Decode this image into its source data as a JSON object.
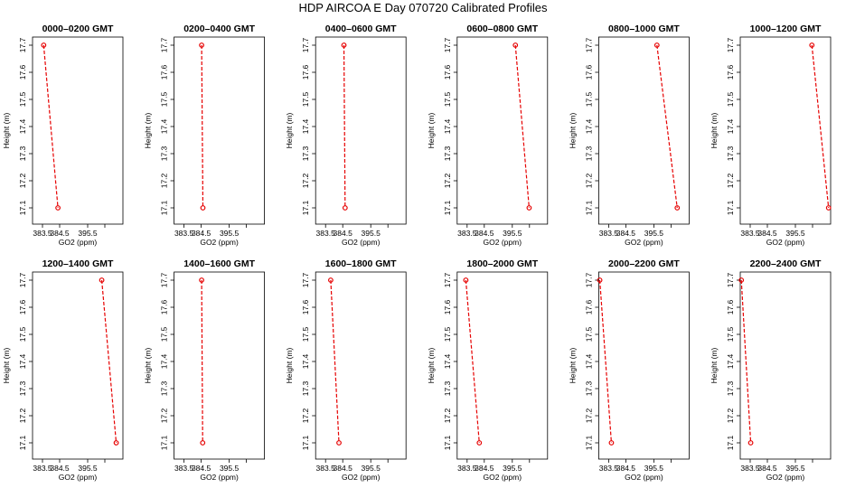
{
  "figure": {
    "title": "HDP  AIRCOA E  Day 070720  Calibrated Profiles"
  },
  "chart_data": [
    {
      "type": "line",
      "title": "0000–0200 GMT",
      "xlabel": "GO2 (ppm)",
      "ylabel": "Height (m)",
      "xlim": [
        382.95,
        396.35
      ],
      "ylim": [
        17.04,
        17.73
      ],
      "xticks": [
        "383.5",
        "384.5",
        "395.5"
      ],
      "yticks": [
        "17.1",
        "17.2",
        "17.3",
        "17.4",
        "17.5",
        "17.6",
        "17.7"
      ],
      "x": [
        383.57,
        384.4
      ],
      "y": [
        17.7,
        17.1
      ]
    },
    {
      "type": "line",
      "title": "0200–0400 GMT",
      "xlabel": "GO2 (ppm)",
      "ylabel": "Height (m)",
      "xlim": [
        382.95,
        396.35
      ],
      "ylim": [
        17.04,
        17.73
      ],
      "xticks": [
        "383.5",
        "384.5",
        "395.5"
      ],
      "yticks": [
        "17.1",
        "17.2",
        "17.3",
        "17.4",
        "17.5",
        "17.6",
        "17.7"
      ],
      "x": [
        384.67,
        385.17
      ],
      "y": [
        17.7,
        17.1
      ]
    },
    {
      "type": "line",
      "title": "0400–0600 GMT",
      "xlabel": "GO2 (ppm)",
      "ylabel": "Height (m)",
      "xlim": [
        382.95,
        396.35
      ],
      "ylim": [
        17.04,
        17.73
      ],
      "xticks": [
        "383.5",
        "384.5",
        "395.5"
      ],
      "yticks": [
        "17.1",
        "17.2",
        "17.3",
        "17.4",
        "17.5",
        "17.6",
        "17.7"
      ],
      "x": [
        384.97,
        385.43
      ],
      "y": [
        17.7,
        17.1
      ]
    },
    {
      "type": "line",
      "title": "0600–0800 GMT",
      "xlabel": "GO2 (ppm)",
      "ylabel": "Height (m)",
      "xlim": [
        382.95,
        396.35
      ],
      "ylim": [
        17.04,
        17.73
      ],
      "xticks": [
        "383.5",
        "384.5",
        "395.5"
      ],
      "yticks": [
        "17.1",
        "17.2",
        "17.3",
        "17.4",
        "17.5",
        "17.6",
        "17.7"
      ],
      "x": [
        395.59,
        395.99
      ],
      "y": [
        17.7,
        17.1
      ]
    },
    {
      "type": "line",
      "title": "0800–1000 GMT",
      "xlabel": "GO2 (ppm)",
      "ylabel": "Height (m)",
      "xlim": [
        382.95,
        396.35
      ],
      "ylim": [
        17.04,
        17.73
      ],
      "xticks": [
        "383.5",
        "384.5",
        "395.5"
      ],
      "yticks": [
        "17.1",
        "17.2",
        "17.3",
        "17.4",
        "17.5",
        "17.6",
        "17.7"
      ],
      "x": [
        395.59,
        396.12
      ],
      "y": [
        17.7,
        17.1
      ]
    },
    {
      "type": "line",
      "title": "1000–1200 GMT",
      "xlabel": "GO2 (ppm)",
      "ylabel": "Height (m)",
      "xlim": [
        382.95,
        396.35
      ],
      "ylim": [
        17.04,
        17.73
      ],
      "xticks": [
        "383.5",
        "384.5",
        "395.5"
      ],
      "yticks": [
        "17.1",
        "17.2",
        "17.3",
        "17.4",
        "17.5",
        "17.6",
        "17.7"
      ],
      "x": [
        395.98,
        396.31
      ],
      "y": [
        17.7,
        17.1
      ]
    },
    {
      "type": "line",
      "title": "1200–1400 GMT",
      "xlabel": "GO2 (ppm)",
      "ylabel": "Height (m)",
      "xlim": [
        382.95,
        396.35
      ],
      "ylim": [
        17.04,
        17.73
      ],
      "xticks": [
        "383.5",
        "384.5",
        "395.5"
      ],
      "yticks": [
        "17.1",
        "17.2",
        "17.3",
        "17.4",
        "17.5",
        "17.6",
        "17.7"
      ],
      "x": [
        395.91,
        396.22
      ],
      "y": [
        17.7,
        17.1
      ]
    },
    {
      "type": "line",
      "title": "1400–1600 GMT",
      "xlabel": "GO2 (ppm)",
      "ylabel": "Height (m)",
      "xlim": [
        382.95,
        396.35
      ],
      "ylim": [
        17.04,
        17.73
      ],
      "xticks": [
        "383.5",
        "384.5",
        "395.5"
      ],
      "yticks": [
        "17.1",
        "17.2",
        "17.3",
        "17.4",
        "17.5",
        "17.6",
        "17.7"
      ],
      "x": [
        384.67,
        385.08
      ],
      "y": [
        17.7,
        17.1
      ]
    },
    {
      "type": "line",
      "title": "1600–1800 GMT",
      "xlabel": "GO2 (ppm)",
      "ylabel": "Height (m)",
      "xlim": [
        382.95,
        396.35
      ],
      "ylim": [
        17.04,
        17.73
      ],
      "xticks": [
        "383.5",
        "384.5",
        "395.5"
      ],
      "yticks": [
        "17.1",
        "17.2",
        "17.3",
        "17.4",
        "17.5",
        "17.6",
        "17.7"
      ],
      "x": [
        383.8,
        384.28
      ],
      "y": [
        17.7,
        17.1
      ]
    },
    {
      "type": "line",
      "title": "1800–2000 GMT",
      "xlabel": "GO2 (ppm)",
      "ylabel": "Height (m)",
      "xlim": [
        382.95,
        396.35
      ],
      "ylim": [
        17.04,
        17.73
      ],
      "xticks": [
        "383.5",
        "384.5",
        "395.5"
      ],
      "yticks": [
        "17.1",
        "17.2",
        "17.3",
        "17.4",
        "17.5",
        "17.6",
        "17.7"
      ],
      "x": [
        383.43,
        384.21
      ],
      "y": [
        17.7,
        17.1
      ]
    },
    {
      "type": "line",
      "title": "2000–2200 GMT",
      "xlabel": "GO2 (ppm)",
      "ylabel": "Height (m)",
      "xlim": [
        382.95,
        396.35
      ],
      "ylim": [
        17.04,
        17.73
      ],
      "xticks": [
        "383.5",
        "384.5",
        "395.5"
      ],
      "yticks": [
        "17.1",
        "17.2",
        "17.3",
        "17.4",
        "17.5",
        "17.6",
        "17.7"
      ],
      "x": [
        383.01,
        383.66
      ],
      "y": [
        17.7,
        17.1
      ]
    },
    {
      "type": "line",
      "title": "2200–2400 GMT",
      "xlabel": "GO2 (ppm)",
      "ylabel": "Height (m)",
      "xlim": [
        382.95,
        396.35
      ],
      "ylim": [
        17.04,
        17.73
      ],
      "xticks": [
        "383.5",
        "384.5",
        "395.5"
      ],
      "yticks": [
        "17.1",
        "17.2",
        "17.3",
        "17.4",
        "17.5",
        "17.6",
        "17.7"
      ],
      "x": [
        383.01,
        383.53
      ],
      "y": [
        17.7,
        17.1
      ]
    }
  ]
}
